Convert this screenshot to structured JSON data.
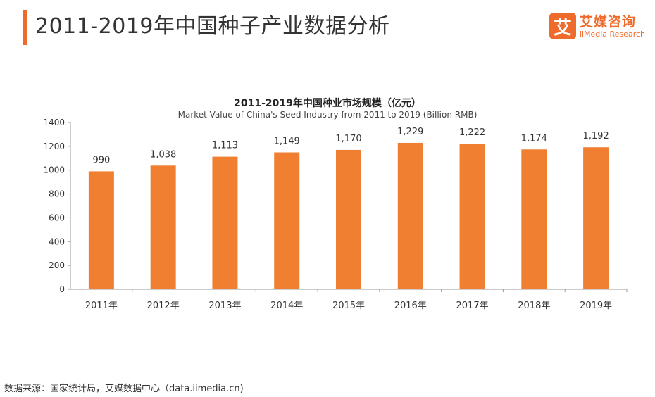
{
  "header": {
    "title": "2011-2019年中国种子产业数据分析",
    "logo_mark": "艾",
    "logo_cn": "艾媒咨询",
    "logo_en": "iiMedia Research"
  },
  "colors": {
    "accent": "#ee6b2c",
    "bar": "#f07f31"
  },
  "chart_data": {
    "type": "bar",
    "title": "2011-2019年中国种业市场规模（亿元）",
    "subtitle": "Market Value of China's Seed Industry from 2011 to 2019 (Billion RMB)",
    "categories": [
      "2011年",
      "2012年",
      "2013年",
      "2014年",
      "2015年",
      "2016年",
      "2017年",
      "2018年",
      "2019年"
    ],
    "values": [
      990,
      1038,
      1113,
      1149,
      1170,
      1229,
      1222,
      1174,
      1192
    ],
    "value_labels": [
      "990",
      "1,038",
      "1,113",
      "1,149",
      "1,170",
      "1,229",
      "1,222",
      "1,174",
      "1,192"
    ],
    "ylim": [
      0,
      1400
    ],
    "yticks": [
      0,
      200,
      400,
      600,
      800,
      1000,
      1200,
      1400
    ],
    "xlabel": "",
    "ylabel": "",
    "grid": false
  },
  "footer": {
    "source": "数据来源：国家统计局，艾媒数据中心（data.iimedia.cn)"
  }
}
